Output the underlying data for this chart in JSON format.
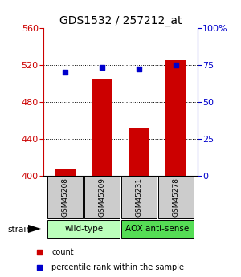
{
  "title": "GDS1532 / 257212_at",
  "samples": [
    "GSM45208",
    "GSM45209",
    "GSM45231",
    "GSM45278"
  ],
  "counts": [
    407,
    505,
    451,
    525
  ],
  "percentiles": [
    70,
    73,
    72,
    75
  ],
  "baseline": 400,
  "ylim_left": [
    400,
    560
  ],
  "ylim_right": [
    0,
    100
  ],
  "yticks_left": [
    400,
    440,
    480,
    520,
    560
  ],
  "yticks_right": [
    0,
    25,
    50,
    75,
    100
  ],
  "bar_color": "#cc0000",
  "dot_color": "#0000cc",
  "groups": [
    {
      "label": "wild-type",
      "indices": [
        0,
        1
      ],
      "color": "#bbffbb"
    },
    {
      "label": "AOX anti-sense",
      "indices": [
        2,
        3
      ],
      "color": "#55dd55"
    }
  ],
  "strain_label": "strain",
  "legend_count_label": "count",
  "legend_pct_label": "percentile rank within the sample",
  "sample_box_color": "#cccccc",
  "left_axis_color": "#cc0000",
  "right_axis_color": "#0000cc",
  "title_fontsize": 10,
  "tick_fontsize": 8,
  "bar_width": 0.55
}
